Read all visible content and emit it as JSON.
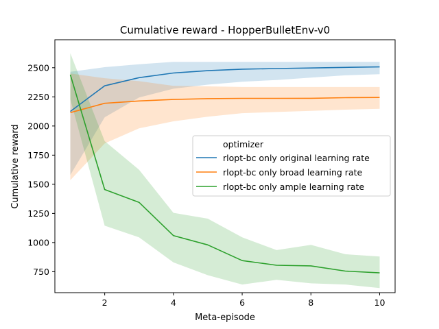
{
  "chart_data": {
    "type": "line",
    "title": "Cumulative reward - HopperBulletEnv-v0",
    "xlabel": "Meta-episode",
    "ylabel": "Cumulative reward",
    "xlim": [
      0.55,
      10.45
    ],
    "ylim": [
      570,
      2740
    ],
    "xticks": [
      2,
      4,
      6,
      8,
      10
    ],
    "yticks": [
      750,
      1000,
      1250,
      1500,
      1750,
      2000,
      2250,
      2500
    ],
    "grid": false,
    "legend": {
      "title": "optimizer",
      "position": "center-right"
    },
    "x": [
      1,
      2,
      3,
      4,
      5,
      6,
      7,
      8,
      9,
      10
    ],
    "series": [
      {
        "name": "rlopt-bc only original learning rate",
        "color": "#1f77b4",
        "values": [
          2125,
          2345,
          2415,
          2455,
          2475,
          2488,
          2493,
          2498,
          2503,
          2507
        ],
        "lower": [
          1580,
          2075,
          2245,
          2320,
          2355,
          2380,
          2395,
          2415,
          2435,
          2445
        ],
        "upper": [
          2465,
          2505,
          2530,
          2550,
          2550,
          2550,
          2550,
          2550,
          2550,
          2550
        ]
      },
      {
        "name": "rlopt-bc only broad learning rate",
        "color": "#ff7f0e",
        "values": [
          2115,
          2195,
          2215,
          2228,
          2235,
          2237,
          2237,
          2238,
          2243,
          2245
        ],
        "lower": [
          1535,
          1850,
          1980,
          2040,
          2080,
          2110,
          2120,
          2130,
          2140,
          2148
        ],
        "upper": [
          2450,
          2410,
          2385,
          2345,
          2340,
          2335,
          2335,
          2335,
          2335,
          2335
        ]
      },
      {
        "name": "rlopt-bc only ample learning rate",
        "color": "#2ca02c",
        "values": [
          2440,
          1455,
          1345,
          1060,
          980,
          845,
          805,
          800,
          755,
          740
        ],
        "lower": [
          2230,
          1145,
          1045,
          830,
          720,
          640,
          680,
          650,
          640,
          610
        ],
        "upper": [
          2625,
          1870,
          1625,
          1255,
          1205,
          1045,
          935,
          980,
          900,
          880
        ]
      }
    ]
  }
}
